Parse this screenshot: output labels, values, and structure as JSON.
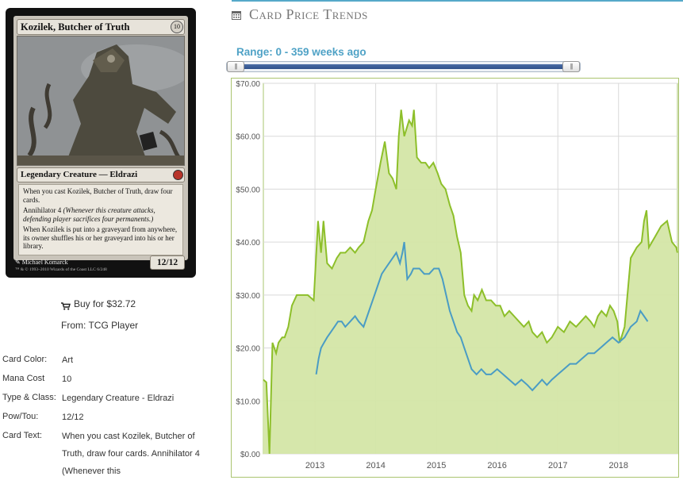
{
  "card": {
    "name": "Kozilek, Butcher of Truth",
    "cost": "10",
    "type_line": "Legendary Creature — Eldrazi",
    "text": [
      "When you cast Kozilek, Butcher of Truth, draw four cards.",
      "Annihilator 4",
      "(Whenever this creature attacks, defending player sacrifices four permanents.)",
      "When Kozilek is put into a graveyard from anywhere, its owner shuffles his or her graveyard into his or her library."
    ],
    "power_toughness": "12/12",
    "artist": "Michael Komarck",
    "copyright": "™ & © 1993–2010 Wizards of the Coast LLC 6/248"
  },
  "buy": {
    "label": "Buy for $32.72",
    "from": "From: TCG Player",
    "icon": "cart-icon"
  },
  "info": [
    {
      "label": "Card Color:",
      "value": "Art"
    },
    {
      "label": "Mana Cost",
      "value": "10"
    },
    {
      "label": "Type & Class:",
      "value": "Legendary Creature - Eldrazi"
    },
    {
      "label": "Pow/Tou:",
      "value": "12/12"
    },
    {
      "label": "Card Text:",
      "value": "When you cast Kozilek, Butcher of Truth, draw four cards. Annihilator 4 (Whenever this"
    }
  ],
  "section": {
    "title": "Card Price Trends",
    "icon": "calendar-icon"
  },
  "range": {
    "label": "Range: 0 - 359 weeks ago",
    "min_weeks": 0,
    "max_weeks": 359,
    "handle_glyph": "|||"
  },
  "colors": {
    "accent": "#4fa2c6",
    "paper_series": "#8dbf2a",
    "paper_fill": "#d4e6a7",
    "foil_series": "#4a9cc4",
    "topline": "#56a9c9"
  },
  "chart_data": {
    "type": "area",
    "x_unit": "year",
    "xlim": [
      2012.15,
      2018.97
    ],
    "ylim": [
      0,
      70
    ],
    "yticks": [
      "$0.00",
      "$10.00",
      "$20.00",
      "$30.00",
      "$40.00",
      "$50.00",
      "$60.00",
      "$70.00"
    ],
    "ytick_values": [
      0,
      10,
      20,
      30,
      40,
      50,
      60,
      70
    ],
    "xticks": [
      "2013",
      "2014",
      "2015",
      "2016",
      "2017",
      "2018"
    ],
    "xtick_values": [
      2013,
      2014,
      2015,
      2016,
      2017,
      2018
    ],
    "grid": true,
    "series": [
      {
        "style": "area",
        "x": [
          2012.15,
          2012.2,
          2012.25,
          2012.3,
          2012.33,
          2012.36,
          2012.4,
          2012.46,
          2012.5,
          2012.56,
          2012.62,
          2012.7,
          2012.78,
          2012.88,
          2012.98,
          2013.05,
          2013.1,
          2013.14,
          2013.2,
          2013.28,
          2013.36,
          2013.42,
          2013.5,
          2013.58,
          2013.66,
          2013.72,
          2013.8,
          2013.88,
          2013.94,
          2014.0,
          2014.08,
          2014.15,
          2014.22,
          2014.28,
          2014.34,
          2014.38,
          2014.42,
          2014.47,
          2014.55,
          2014.6,
          2014.63,
          2014.68,
          2014.75,
          2014.82,
          2014.88,
          2014.95,
          2015.02,
          2015.08,
          2015.15,
          2015.22,
          2015.28,
          2015.34,
          2015.4,
          2015.46,
          2015.52,
          2015.58,
          2015.62,
          2015.68,
          2015.75,
          2015.82,
          2015.9,
          2015.98,
          2016.05,
          2016.12,
          2016.2,
          2016.28,
          2016.36,
          2016.44,
          2016.52,
          2016.58,
          2016.66,
          2016.74,
          2016.82,
          2016.9,
          2017.0,
          2017.1,
          2017.2,
          2017.3,
          2017.38,
          2017.46,
          2017.54,
          2017.6,
          2017.66,
          2017.72,
          2017.8,
          2017.86,
          2017.92,
          2017.98,
          2018.02,
          2018.1,
          2018.2,
          2018.3,
          2018.38,
          2018.42,
          2018.46,
          2018.5,
          2018.6,
          2018.7,
          2018.8,
          2018.88,
          2018.95,
          2018.97
        ],
        "y": [
          14,
          13.5,
          0,
          21,
          20,
          19,
          21,
          22,
          22,
          24,
          28,
          30,
          30,
          30,
          29,
          44,
          38,
          44,
          36,
          35,
          37,
          38,
          38,
          39,
          38,
          39,
          40,
          44,
          46,
          50,
          55,
          59,
          53,
          52,
          50,
          60,
          65,
          60,
          63,
          62,
          65,
          56,
          55,
          55,
          54,
          55,
          53,
          51,
          50,
          47,
          45,
          41,
          38,
          30,
          28,
          27,
          30,
          29,
          31,
          29,
          29,
          28,
          28,
          26,
          27,
          26,
          25,
          24,
          25,
          23,
          22,
          23,
          21,
          22,
          24,
          23,
          25,
          24,
          25,
          26,
          25,
          24,
          26,
          27,
          26,
          28,
          27,
          25,
          21,
          24,
          37,
          39,
          40,
          44,
          46,
          39,
          41,
          43,
          44,
          40,
          39,
          38
        ]
      },
      {
        "style": "line",
        "x": [
          2013.02,
          2013.06,
          2013.1,
          2013.15,
          2013.2,
          2013.26,
          2013.32,
          2013.38,
          2013.44,
          2013.5,
          2013.58,
          2013.66,
          2013.72,
          2013.8,
          2013.86,
          2013.92,
          2013.98,
          2014.04,
          2014.1,
          2014.16,
          2014.22,
          2014.28,
          2014.34,
          2014.4,
          2014.44,
          2014.47,
          2014.52,
          2014.58,
          2014.62,
          2014.66,
          2014.72,
          2014.8,
          2014.88,
          2014.96,
          2015.04,
          2015.1,
          2015.16,
          2015.22,
          2015.28,
          2015.34,
          2015.4,
          2015.46,
          2015.52,
          2015.58,
          2015.66,
          2015.74,
          2015.82,
          2015.9,
          2016.0,
          2016.1,
          2016.2,
          2016.3,
          2016.4,
          2016.5,
          2016.58,
          2016.66,
          2016.74,
          2016.82,
          2016.9,
          2017.0,
          2017.1,
          2017.2,
          2017.3,
          2017.4,
          2017.5,
          2017.6,
          2017.7,
          2017.8,
          2017.9,
          2018.0,
          2018.1,
          2018.2,
          2018.3,
          2018.36,
          2018.42,
          2018.48
        ],
        "y": [
          15,
          18,
          20,
          21,
          22,
          23,
          24,
          25,
          25,
          24,
          25,
          26,
          25,
          24,
          26,
          28,
          30,
          32,
          34,
          35,
          36,
          37,
          38,
          36,
          38,
          40,
          33,
          34,
          35,
          35,
          35,
          34,
          34,
          35,
          35,
          33,
          30,
          27,
          25,
          23,
          22,
          20,
          18,
          16,
          15,
          16,
          15,
          15,
          16,
          15,
          14,
          13,
          14,
          13,
          12,
          13,
          14,
          13,
          14,
          15,
          16,
          17,
          17,
          18,
          19,
          19,
          20,
          21,
          22,
          21,
          22,
          24,
          25,
          27,
          26,
          25
        ]
      }
    ]
  }
}
